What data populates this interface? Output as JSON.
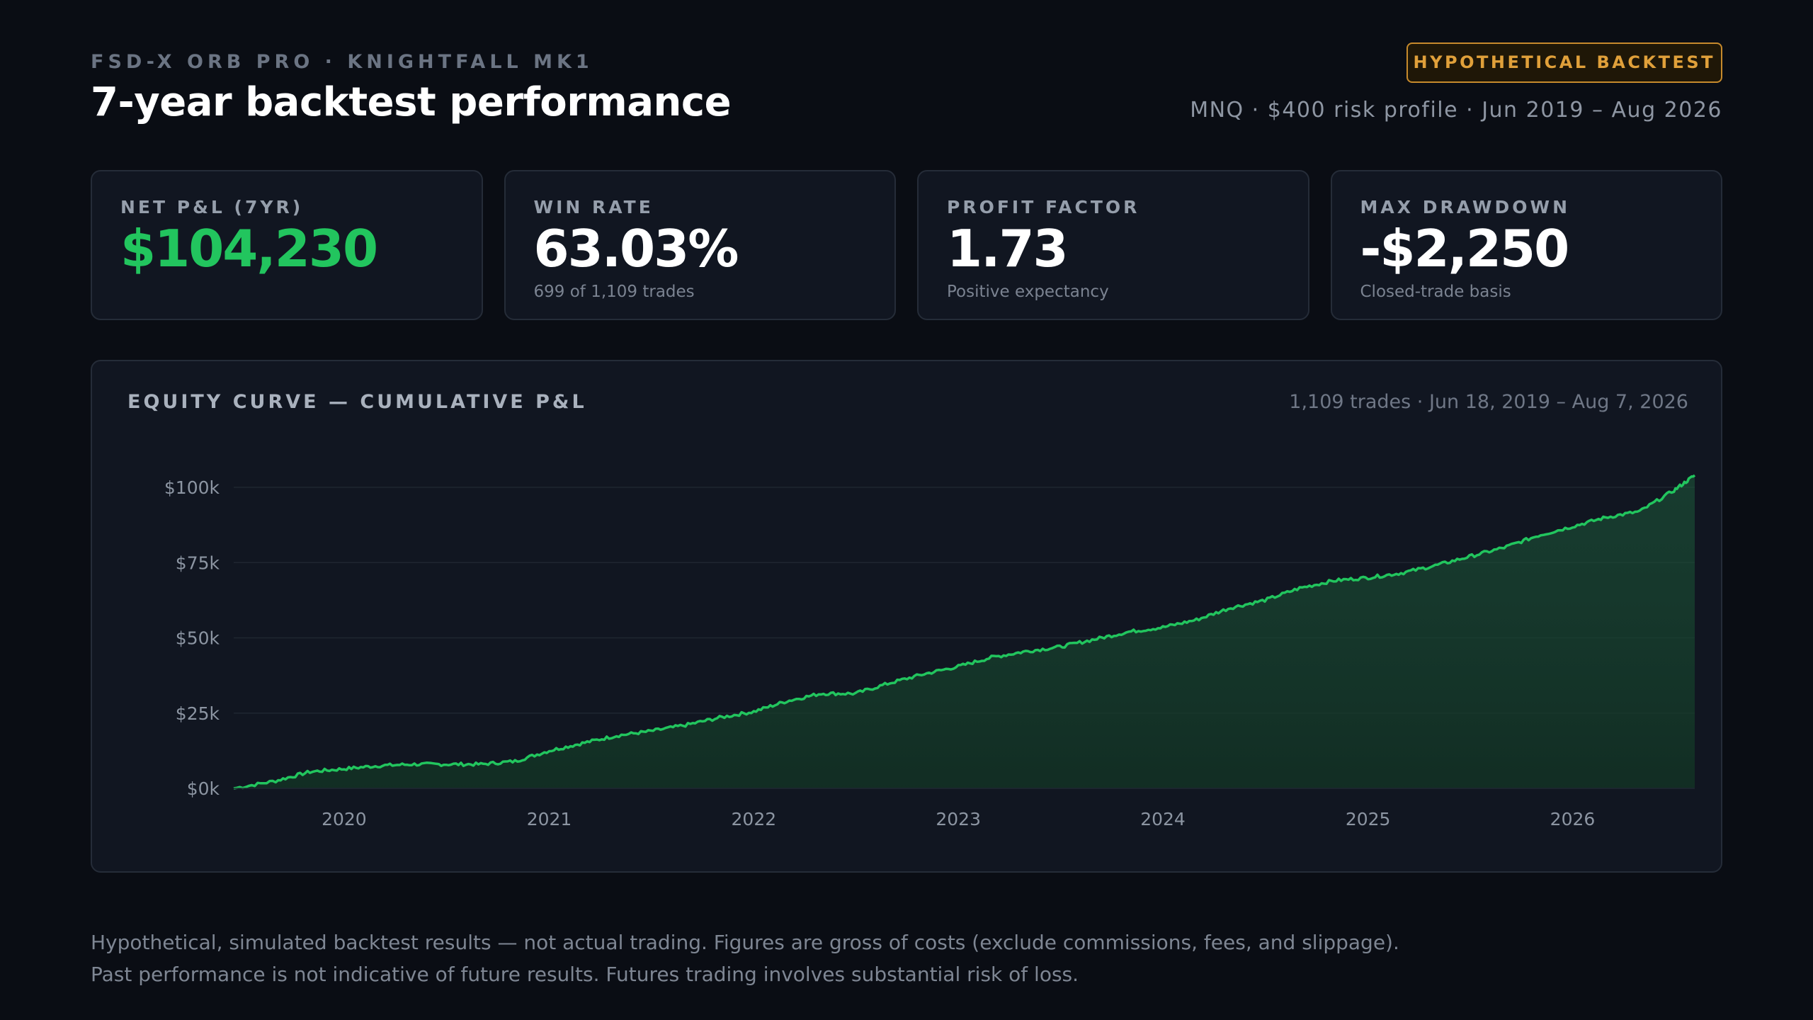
{
  "header": {
    "eyebrow": "FSD-X ORB PRO · KNIGHTFALL MK1",
    "title": "7-year backtest performance",
    "badge": "HYPOTHETICAL BACKTEST",
    "subtitle": "MNQ · $400 risk profile · Jun 2019 – Aug 2026"
  },
  "cards": [
    {
      "label": "NET P&L (7YR)",
      "value": "$104,230",
      "sub": ""
    },
    {
      "label": "WIN RATE",
      "value": "63.03%",
      "sub": "699 of 1,109 trades"
    },
    {
      "label": "PROFIT FACTOR",
      "value": "1.73",
      "sub": "Positive expectancy"
    },
    {
      "label": "MAX DRAWDOWN",
      "value": "-$2,250",
      "sub": "Closed-trade basis"
    }
  ],
  "chart_panel": {
    "title": "EQUITY CURVE — CUMULATIVE P&L",
    "meta": "1,109 trades · Jun 18, 2019 – Aug 7, 2026"
  },
  "colors": {
    "accent_green": "#22c55e",
    "badge_amber": "#e0a03a",
    "background": "#0a0d14"
  },
  "chart_data": {
    "type": "area",
    "title": "EQUITY CURVE — CUMULATIVE P&L",
    "xlabel": "",
    "ylabel": "",
    "ylim": [
      0,
      100000
    ],
    "x_range": [
      "2019-06-18",
      "2026-08-07"
    ],
    "y_ticks": [
      0,
      25000,
      50000,
      75000,
      100000
    ],
    "y_tick_labels": [
      "$0k",
      "$25k",
      "$50k",
      "$75k",
      "$100k"
    ],
    "x_ticks": [
      "2020",
      "2021",
      "2022",
      "2023",
      "2024",
      "2025",
      "2026"
    ],
    "grid": true,
    "series": [
      {
        "x": [
          "2019-06-18",
          "2019-09-01",
          "2019-11-01",
          "2020-01-01",
          "2020-03-01",
          "2020-05-01",
          "2020-07-01",
          "2020-09-01",
          "2020-11-01",
          "2021-01-01",
          "2021-03-01",
          "2021-05-01",
          "2021-07-01",
          "2021-09-01",
          "2021-11-01",
          "2022-01-01",
          "2022-03-01",
          "2022-05-01",
          "2022-07-01",
          "2022-09-01",
          "2022-11-01",
          "2023-01-01",
          "2023-03-01",
          "2023-05-01",
          "2023-07-01",
          "2023-09-01",
          "2023-11-01",
          "2024-01-01",
          "2024-03-01",
          "2024-05-01",
          "2024-07-01",
          "2024-09-01",
          "2024-11-01",
          "2025-01-01",
          "2025-03-01",
          "2025-05-01",
          "2025-07-01",
          "2025-09-01",
          "2025-11-01",
          "2026-01-01",
          "2026-03-01",
          "2026-05-01",
          "2026-07-01",
          "2026-08-07"
        ],
        "values": [
          0,
          2500,
          5500,
          6500,
          7500,
          8000,
          8000,
          8000,
          9000,
          12500,
          15000,
          17500,
          19000,
          21000,
          23500,
          25500,
          29000,
          31500,
          31500,
          35000,
          38000,
          40500,
          43500,
          45500,
          47000,
          49500,
          52000,
          53500,
          56000,
          60000,
          62500,
          66500,
          69000,
          70000,
          71500,
          74000,
          77000,
          80000,
          84000,
          87000,
          90000,
          92000,
          99000,
          104000
        ]
      }
    ]
  },
  "disclaimer": {
    "line1": "Hypothetical, simulated backtest results — not actual trading. Figures are gross of costs (exclude commissions, fees, and slippage).",
    "line2": "Past performance is not indicative of future results. Futures trading involves substantial risk of loss."
  }
}
